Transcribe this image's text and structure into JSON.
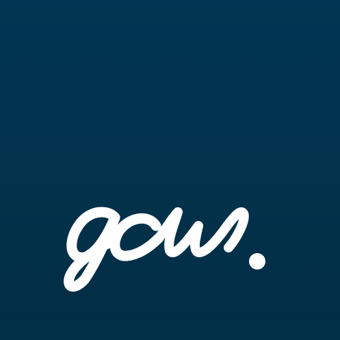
{
  "logo": {
    "wordmark": "gcw.",
    "icon": "gcw-script-logo-icon",
    "colors": {
      "background": "#013553",
      "background_bottom": "#022d44",
      "bottom_band": "#013046",
      "wordmark": "#ffffff"
    }
  }
}
